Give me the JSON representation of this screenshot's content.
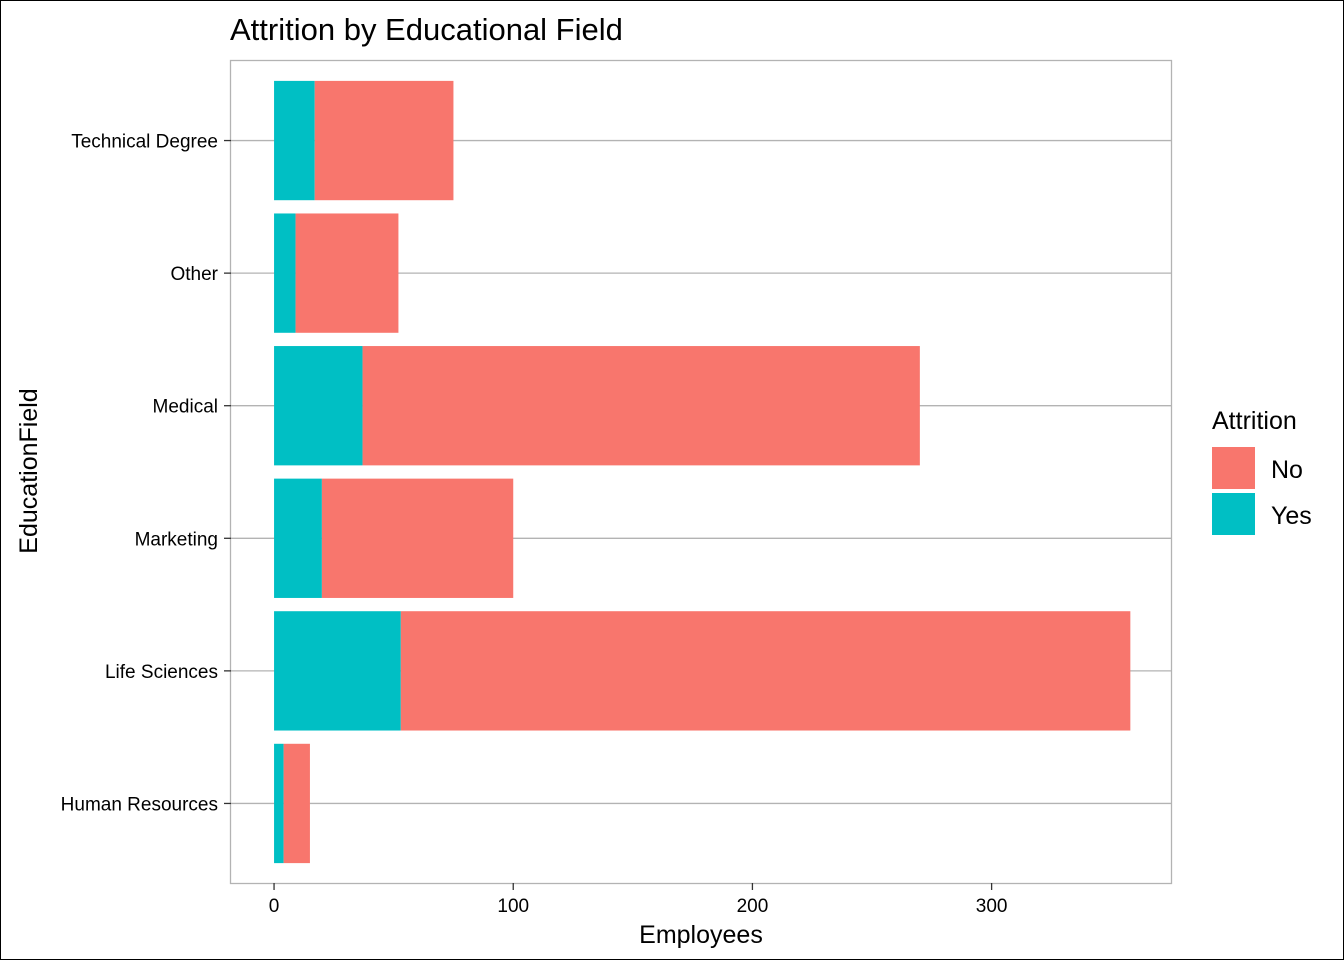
{
  "chart_data": {
    "type": "bar",
    "orientation": "horizontal",
    "stacked": true,
    "title": "Attrition by Educational Field",
    "xlabel": "Employees",
    "ylabel": "EducationField",
    "categories": [
      "Human Resources",
      "Life Sciences",
      "Marketing",
      "Medical",
      "Other",
      "Technical Degree"
    ],
    "series": [
      {
        "name": "No",
        "values": [
          11,
          305,
          80,
          233,
          43,
          58
        ],
        "color": "#F8766D"
      },
      {
        "name": "Yes",
        "values": [
          4,
          53,
          20,
          37,
          9,
          17
        ],
        "color": "#00BFC4"
      }
    ],
    "stack_order": [
      "Yes",
      "No"
    ],
    "xlim": [
      -18,
      375
    ],
    "xticks": [
      0,
      100,
      200,
      300
    ],
    "grid": true,
    "legend": {
      "title": "Attrition",
      "position": "right",
      "entries": [
        "No",
        "Yes"
      ]
    }
  }
}
